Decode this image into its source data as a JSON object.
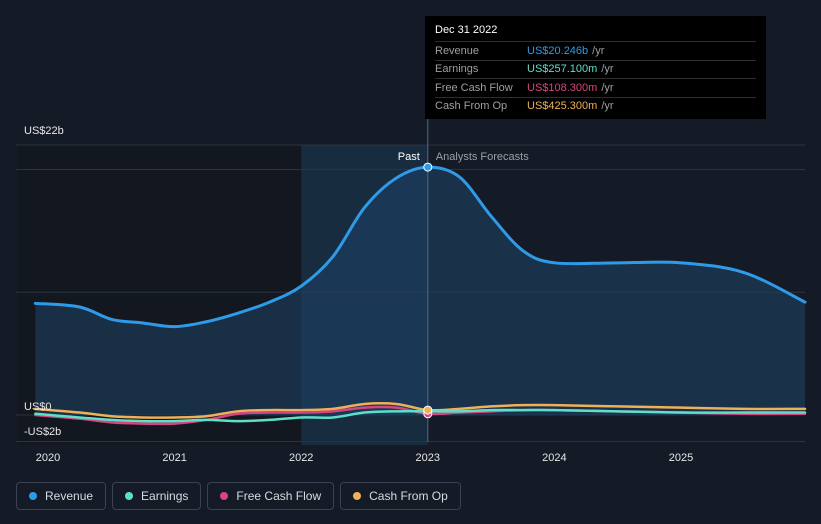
{
  "tooltip": {
    "date": "Dec 31 2022",
    "rows": [
      {
        "label": "Revenue",
        "value": "US$20.246b",
        "unit": "/yr",
        "color": "#2f9be8"
      },
      {
        "label": "Earnings",
        "value": "US$257.100m",
        "unit": "/yr",
        "color": "#5ce0c8"
      },
      {
        "label": "Free Cash Flow",
        "value": "US$108.300m",
        "unit": "/yr",
        "color": "#d6457f"
      },
      {
        "label": "Cash From Op",
        "value": "US$425.300m",
        "unit": "/yr",
        "color": "#efb05a"
      }
    ]
  },
  "legend": [
    {
      "label": "Revenue",
      "color": "#2f9be8"
    },
    {
      "label": "Earnings",
      "color": "#5ce0c8"
    },
    {
      "label": "Free Cash Flow",
      "color": "#d6457f"
    },
    {
      "label": "Cash From Op",
      "color": "#efb05a"
    }
  ],
  "chart_data": {
    "type": "line",
    "title": "",
    "xlabel": "",
    "ylabel": "",
    "x": [
      2019.9,
      2020.25,
      2020.5,
      2020.75,
      2021.0,
      2021.25,
      2021.5,
      2021.75,
      2022.0,
      2022.25,
      2022.5,
      2022.75,
      2023.0,
      2023.25,
      2023.5,
      2023.75,
      2024.0,
      2024.5,
      2025.0,
      2025.5,
      2026.0
    ],
    "xlim": [
      2019.75,
      2026.0
    ],
    "ylim": [
      -2,
      22
    ],
    "y_tick_labels": [
      {
        "value": 22,
        "label": "US$22b"
      },
      {
        "value": 0,
        "label": "US$0"
      },
      {
        "value": -2,
        "label": "-US$2b"
      }
    ],
    "x_tick_labels": [
      "2020",
      "2021",
      "2022",
      "2023",
      "2024",
      "2025"
    ],
    "x_tick_values": [
      2020,
      2021,
      2022,
      2023,
      2024,
      2025
    ],
    "past_label": "Past",
    "forecast_label": "Analysts Forecasts",
    "divider_x": 2023.0,
    "highlight_range": [
      2022.0,
      2023.0
    ],
    "series": [
      {
        "name": "Revenue",
        "color": "#2f9be8",
        "values": [
          9.1,
          8.8,
          7.8,
          7.5,
          7.2,
          7.6,
          8.3,
          9.2,
          10.5,
          12.9,
          16.9,
          19.3,
          20.2,
          19.4,
          16.2,
          13.4,
          12.4,
          12.4,
          12.4,
          11.6,
          9.2
        ]
      },
      {
        "name": "Earnings",
        "color": "#5ce0c8",
        "values": [
          0.1,
          -0.2,
          -0.4,
          -0.5,
          -0.5,
          -0.4,
          -0.5,
          -0.4,
          -0.2,
          -0.2,
          0.2,
          0.3,
          0.3,
          0.3,
          0.4,
          0.4,
          0.4,
          0.3,
          0.2,
          0.2,
          0.2
        ]
      },
      {
        "name": "Free Cash Flow",
        "color": "#d6457f",
        "values": [
          0.0,
          -0.3,
          -0.6,
          -0.7,
          -0.7,
          -0.4,
          0.1,
          0.2,
          0.2,
          0.3,
          0.6,
          0.6,
          0.1,
          0.2,
          0.3,
          0.4,
          0.4,
          0.3,
          0.2,
          0.1,
          0.1
        ]
      },
      {
        "name": "Cash From Op",
        "color": "#efb05a",
        "values": [
          0.5,
          0.2,
          -0.1,
          -0.2,
          -0.2,
          -0.1,
          0.3,
          0.4,
          0.4,
          0.5,
          0.9,
          0.9,
          0.4,
          0.5,
          0.7,
          0.8,
          0.8,
          0.7,
          0.6,
          0.5,
          0.5
        ]
      }
    ]
  }
}
